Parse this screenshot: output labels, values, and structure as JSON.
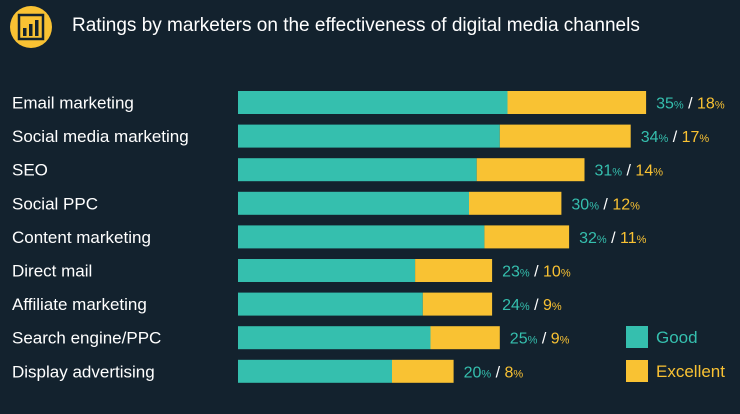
{
  "header": {
    "title": "Ratings by marketers on the effectiveness of digital media channels",
    "logo_icon": "bar-chart-icon"
  },
  "colors": {
    "background": "#13222e",
    "good": "#35bfae",
    "excellent": "#f9c233",
    "text": "#ffffff"
  },
  "chart_data": {
    "type": "bar",
    "orientation": "horizontal",
    "stacked": true,
    "title": "Ratings by marketers on the effectiveness of digital media channels",
    "categories": [
      "Email marketing",
      "Social media marketing",
      "SEO",
      "Social PPC",
      "Content marketing",
      "Direct mail",
      "Affiliate marketing",
      "Search engine/PPC",
      "Display advertising"
    ],
    "series": [
      {
        "name": "Good",
        "values": [
          35,
          34,
          31,
          30,
          32,
          23,
          24,
          25,
          20
        ]
      },
      {
        "name": "Excellent",
        "values": [
          18,
          17,
          14,
          12,
          11,
          10,
          9,
          9,
          8
        ]
      }
    ],
    "value_suffix": "%",
    "grid": false,
    "legend_position": "bottom-right"
  }
}
